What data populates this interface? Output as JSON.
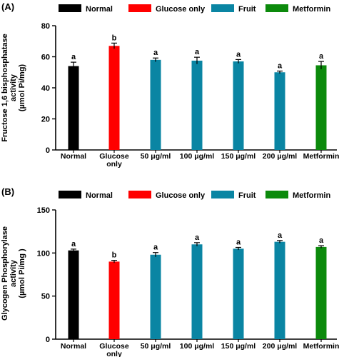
{
  "legend_colors": {
    "Normal": "#000000",
    "Glucose only": "#ff0000",
    "Fruit": "#0a85a3",
    "Metformin": "#0c8a0c"
  },
  "chart_data": [
    {
      "panel_label": "(A)",
      "type": "bar",
      "ylabel": [
        "Fructose 1,6 bisphosphatase",
        "activity",
        "(µmol Pi/mg)"
      ],
      "ylim": [
        0,
        80
      ],
      "yticks": [
        0,
        20,
        40,
        60,
        80
      ],
      "grid": false,
      "legend_position": "top",
      "legend": [
        "Normal",
        "Glucose only",
        "Fruit",
        "Metformin"
      ],
      "categories": [
        [
          "Normal"
        ],
        [
          "Glucose",
          "only"
        ],
        [
          "50 μg/ml"
        ],
        [
          "100 μg/ml"
        ],
        [
          "150 μg/ml"
        ],
        [
          "200 μg/ml"
        ],
        [
          "Metformin"
        ]
      ],
      "group": [
        "Normal",
        "Glucose only",
        "Fruit",
        "Fruit",
        "Fruit",
        "Fruit",
        "Metformin"
      ],
      "values": [
        54,
        67,
        58,
        57.5,
        57,
        50,
        54.5
      ],
      "errors": [
        2.5,
        1.8,
        1.2,
        2.2,
        1.2,
        0.8,
        2.5
      ],
      "significance": [
        "a",
        "b",
        "a",
        "a",
        "a",
        "a",
        "a"
      ]
    },
    {
      "panel_label": "(B)",
      "type": "bar",
      "ylabel": [
        "Glycogen Phosphorylase",
        "activity",
        "(µmol Pi/mg )"
      ],
      "ylim": [
        0,
        150
      ],
      "yticks": [
        0,
        50,
        100,
        150
      ],
      "grid": false,
      "legend_position": "top",
      "legend": [
        "Normal",
        "Glucose only",
        "Fruit",
        "Metformin"
      ],
      "categories": [
        [
          "Normal"
        ],
        [
          "Glucose",
          "only"
        ],
        [
          "50 μg/ml"
        ],
        [
          "100 μg/ml"
        ],
        [
          "150 μg/ml"
        ],
        [
          "200 μg/ml"
        ],
        [
          "Metformin"
        ]
      ],
      "group": [
        "Normal",
        "Glucose only",
        "Fruit",
        "Fruit",
        "Fruit",
        "Fruit",
        "Metformin"
      ],
      "values": [
        103,
        90,
        98,
        110,
        105,
        113,
        107
      ],
      "errors": [
        1.5,
        1.5,
        2.5,
        2,
        1.5,
        1.5,
        1.5
      ],
      "significance": [
        "a",
        "b",
        "a",
        "a",
        "a",
        "a",
        "a"
      ]
    }
  ]
}
